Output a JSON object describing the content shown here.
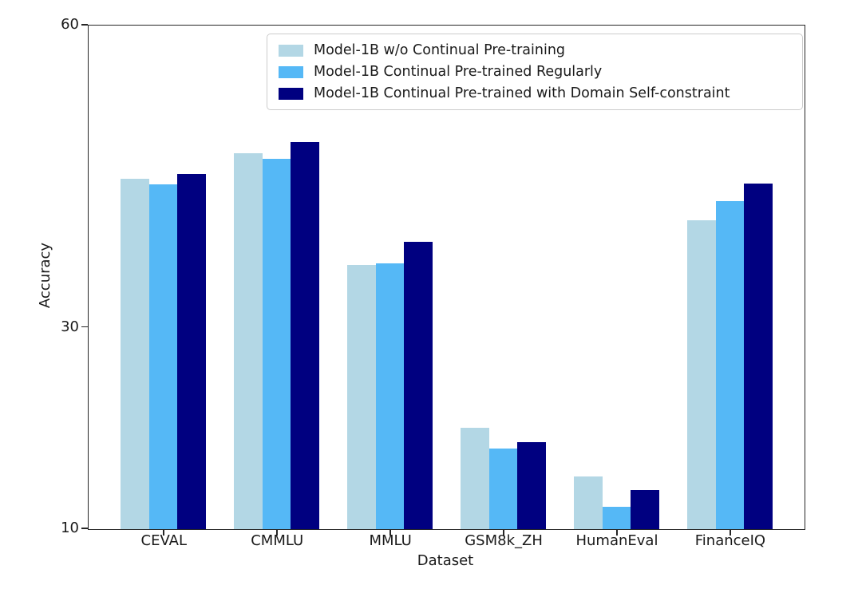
{
  "figure": {
    "background": "#ffffff",
    "axis_color": "#262626"
  },
  "chart_data": {
    "type": "bar",
    "title": "",
    "xlabel": "Dataset",
    "ylabel": "Accuracy",
    "ylim": [
      10,
      60
    ],
    "yticks": [
      10,
      30,
      60
    ],
    "grid": false,
    "legend_position": "upper center, inside axes",
    "categories": [
      "CEVAL",
      "CMMLU",
      "MMLU",
      "GSM8k_ZH",
      "HumanEval",
      "FinanceIQ"
    ],
    "series": [
      {
        "name": "Model-1B w/o Continual Pre-training",
        "color": "#B3D7E5",
        "values": [
          44.8,
          47.3,
          36.2,
          20.1,
          15.2,
          40.7
        ]
      },
      {
        "name": "Model-1B Continual Pre-trained Regularly",
        "color": "#55B8F6",
        "values": [
          44.2,
          46.8,
          36.4,
          18.0,
          12.2,
          42.6
        ]
      },
      {
        "name": "Model-1B Continual Pre-trained with Domain Self-constraint",
        "color": "#000080",
        "values": [
          45.3,
          48.4,
          38.5,
          18.6,
          13.9,
          44.3
        ]
      }
    ]
  }
}
